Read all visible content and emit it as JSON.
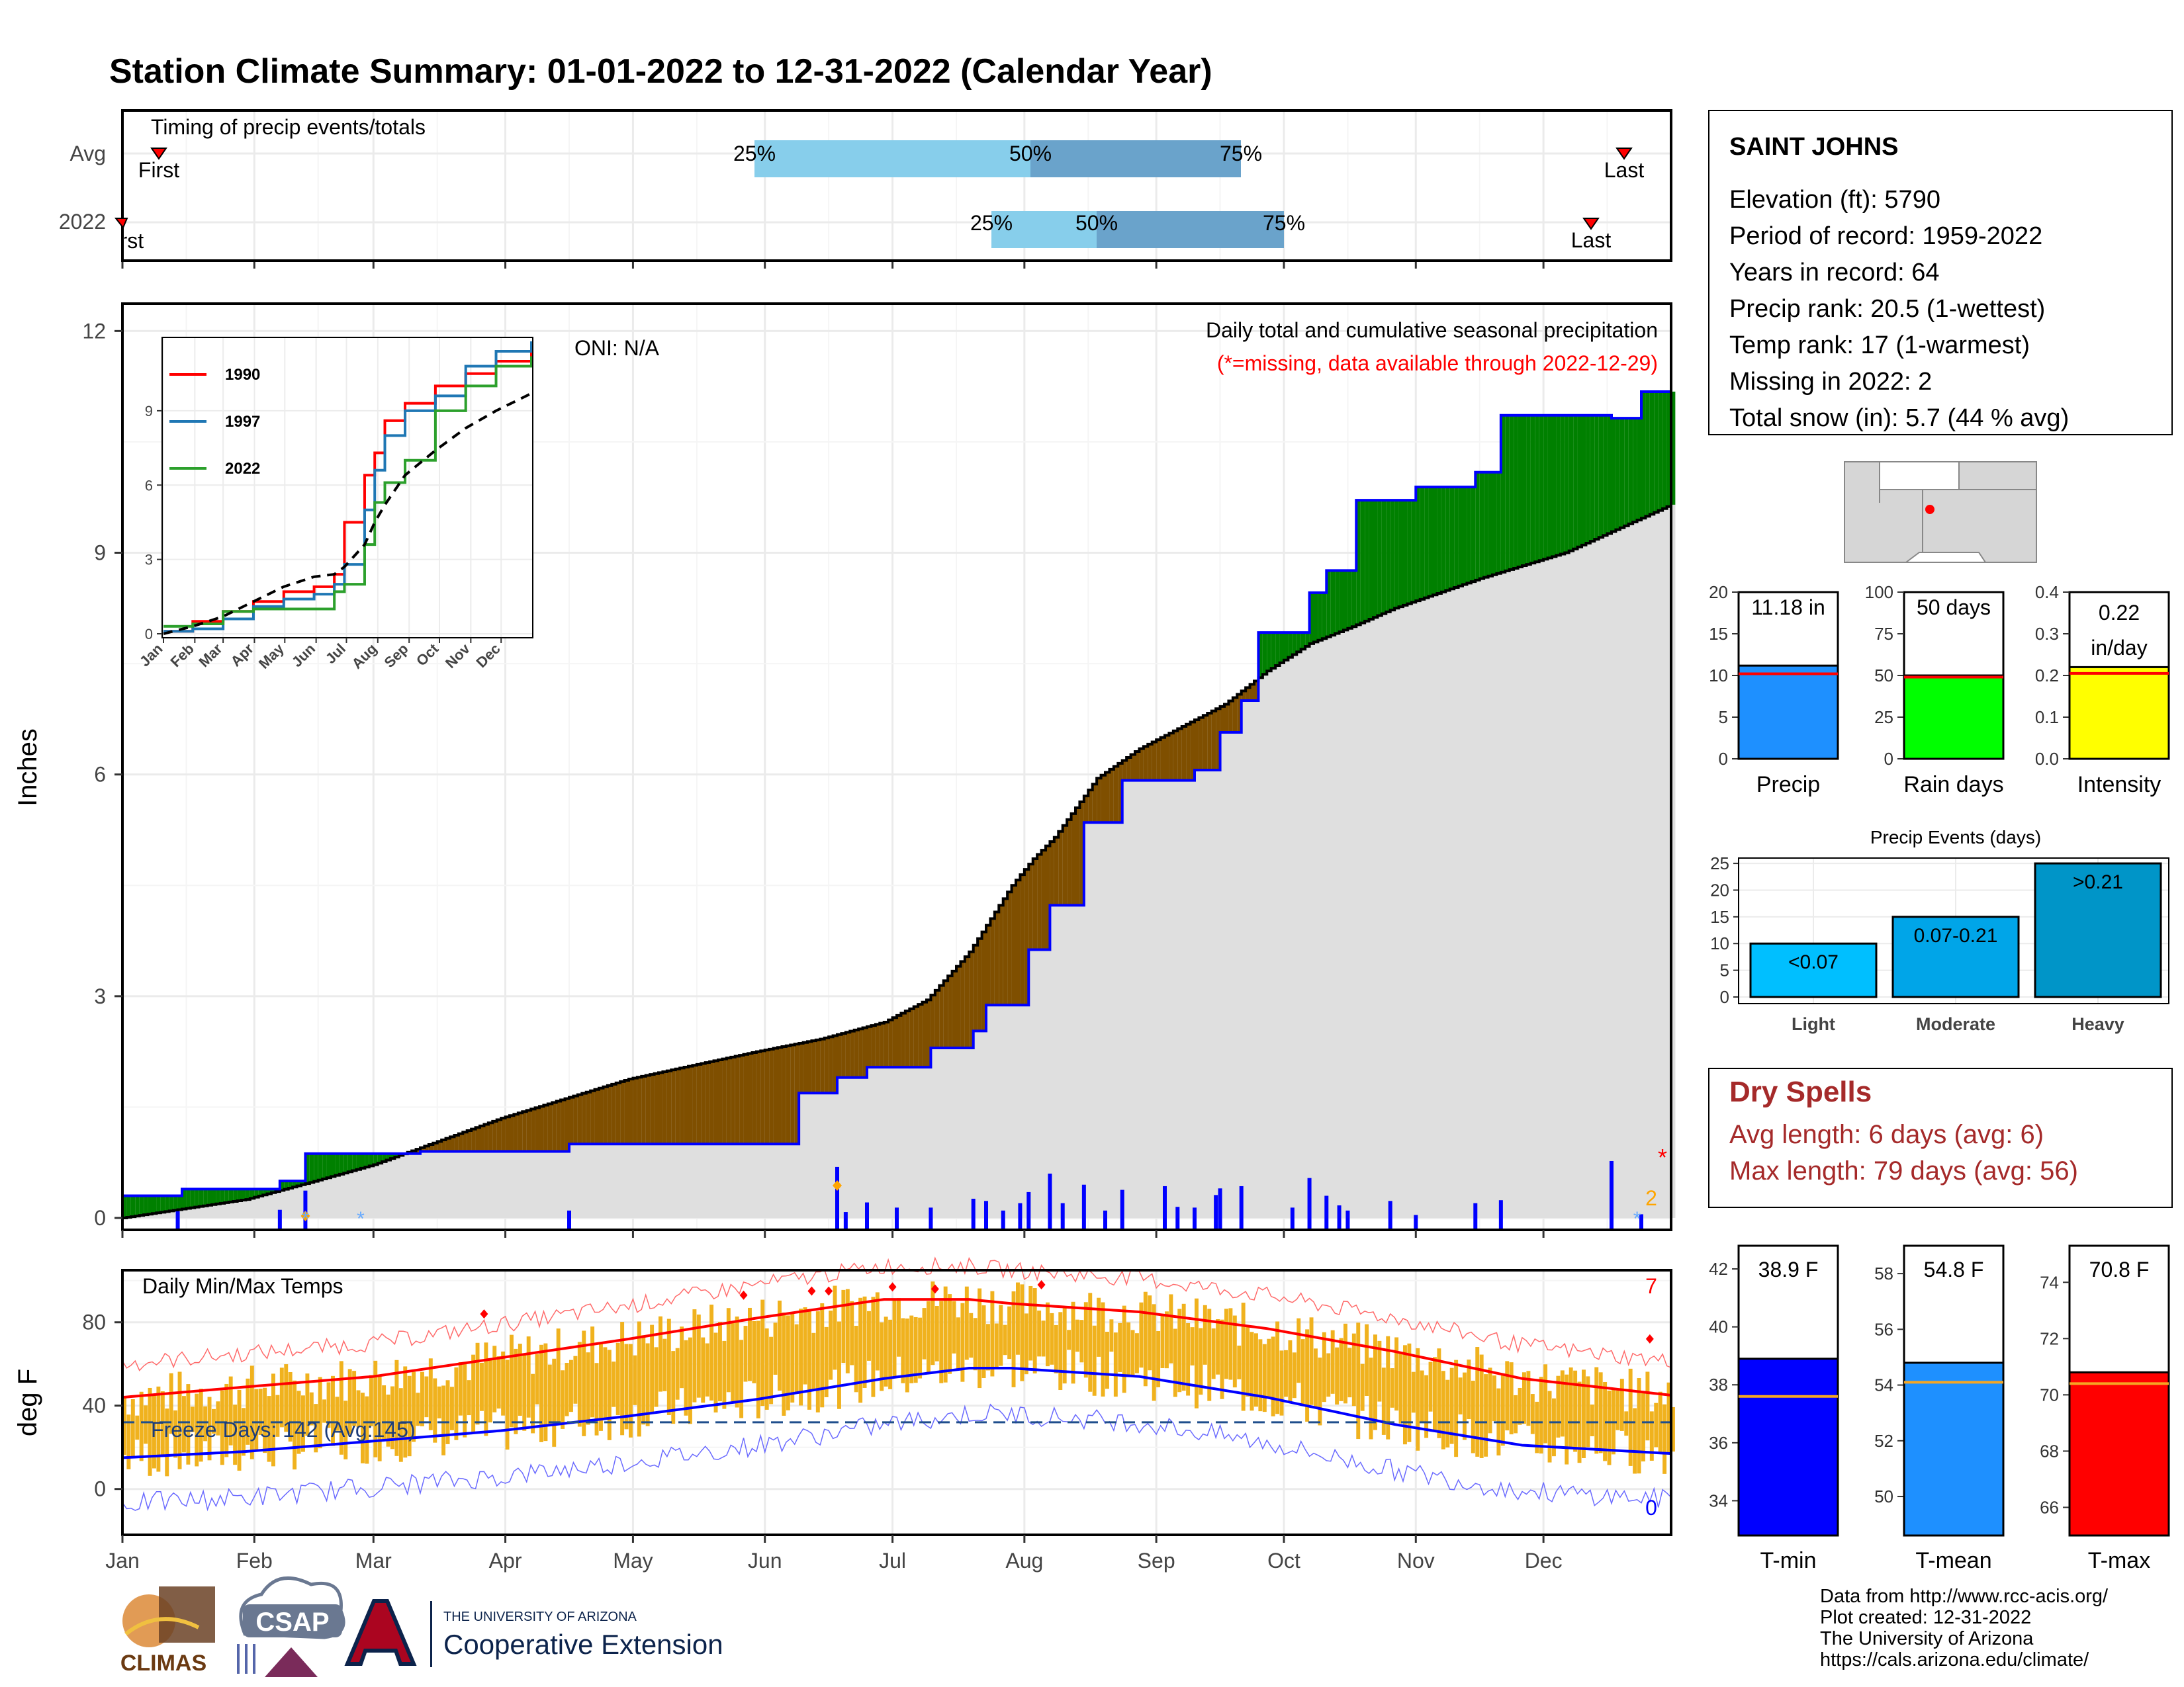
{
  "title": "Station Climate Summary: 01-01-2022 to 12-31-2022 (Calendar Year)",
  "colors": {
    "title": "#1a1a8c",
    "precip_cum": "#0000ff",
    "above_fill": "#008000",
    "below_fill": "#7f4f00",
    "climo_fill": "#dfdfdf",
    "tmax_line": "#ff0000",
    "tmin_line": "#0000ff",
    "temp_bars": "#f0b21e",
    "dry_spells": "#a52a2a",
    "quartile_light": "#87ceeb",
    "quartile_dark": "#6aa3cb"
  },
  "timing": {
    "title": "Timing of precip events/totals",
    "rows": [
      {
        "label": "Avg",
        "first_label": "First",
        "last_label": "Last",
        "q25_label": "25%",
        "q50_label": "50%",
        "q75_label": "75%"
      },
      {
        "label": "2022",
        "first_label": "First",
        "last_label": "Last",
        "q25_label": "25%",
        "q50_label": "50%",
        "q75_label": "75%"
      }
    ]
  },
  "main_panel": {
    "ylabel": "Inches",
    "yticks": [
      "0",
      "3",
      "6",
      "9",
      "12"
    ],
    "oni": "ONI: N/A",
    "note_line1": "Daily total and cumulative seasonal precipitation",
    "note_line2": "(*=missing, data available through 2022-12-29)",
    "missing_count": "2",
    "missing_marker": "*"
  },
  "inset": {
    "yticks": [
      "0",
      "3",
      "6",
      "9"
    ],
    "months": [
      "Jan",
      "Feb",
      "Mar",
      "Apr",
      "May",
      "Jun",
      "Jul",
      "Aug",
      "Sep",
      "Oct",
      "Nov",
      "Dec"
    ],
    "legend": [
      {
        "name": "1990",
        "color": "#ff0000"
      },
      {
        "name": "1997",
        "color": "#1f77b4"
      },
      {
        "name": "2022",
        "color": "#2ca02c"
      }
    ]
  },
  "temp_panel": {
    "ylabel": "deg F",
    "title": "Daily Min/Max Temps",
    "yticks": [
      "0",
      "40",
      "80"
    ],
    "freeze_label": "Freeze Days: 142 (Avg:145)",
    "record_high_count": "7",
    "record_low_count": "0"
  },
  "months": [
    "Jan",
    "Feb",
    "Mar",
    "Apr",
    "May",
    "Jun",
    "Jul",
    "Aug",
    "Sep",
    "Oct",
    "Nov",
    "Dec"
  ],
  "station": {
    "name": "SAINT JOHNS",
    "lines": [
      "Elevation (ft): 5790",
      "Period of record: 1959-2022",
      "Years in record: 64",
      "Precip rank: 20.5 (1-wettest)",
      "Temp rank: 17 (1-warmest)",
      "Missing in 2022: 2",
      "Total snow (in): 5.7 (44 % avg)"
    ]
  },
  "mini_bars": [
    {
      "label": "Precip",
      "value_label": "11.18 in",
      "yticks": [
        "0",
        "5",
        "10",
        "15",
        "20"
      ],
      "color": "#1e90ff"
    },
    {
      "label": "Rain days",
      "value_label": "50 days",
      "yticks": [
        "0",
        "25",
        "50",
        "75",
        "100"
      ],
      "color": "#00ff00"
    },
    {
      "label": "Intensity",
      "value_label": "0.22",
      "value_label2": "in/day",
      "yticks": [
        "0.0",
        "0.1",
        "0.2",
        "0.3",
        "0.4"
      ],
      "color": "#ffff00"
    }
  ],
  "events": {
    "title": "Precip Events (days)",
    "yticks": [
      "0",
      "5",
      "10",
      "15",
      "20",
      "25"
    ],
    "bars": [
      {
        "label": "Light",
        "value_label": "<0.07",
        "color": "#00bfff"
      },
      {
        "label": "Moderate",
        "value_label": "0.07-0.21",
        "color": "#00a5e8"
      },
      {
        "label": "Heavy",
        "value_label": ">0.21",
        "color": "#0095c8"
      }
    ]
  },
  "dry_spells": {
    "title": "Dry Spells",
    "line1": "Avg length: 6 days (avg: 6)",
    "line2": "Max length: 79 days (avg: 56)"
  },
  "temp_bars": [
    {
      "label": "T-min",
      "value_label": "38.9 F",
      "yticks": [
        "34",
        "36",
        "38",
        "40",
        "42"
      ],
      "color": "#0000ff"
    },
    {
      "label": "T-mean",
      "value_label": "54.8 F",
      "yticks": [
        "50",
        "52",
        "54",
        "56",
        "58"
      ],
      "color": "#1e90ff"
    },
    {
      "label": "T-max",
      "value_label": "70.8 F",
      "yticks": [
        "66",
        "68",
        "70",
        "72",
        "74"
      ],
      "color": "#ff0000"
    }
  ],
  "footer": {
    "lines": [
      "Data from http://www.rcc-acis.org/",
      "Plot created: 12-31-2022",
      "The University of Arizona",
      "https://cals.arizona.edu/climate/"
    ],
    "climas": "CLIMAS",
    "csap": "CSAP",
    "ua_small": "THE UNIVERSITY OF ARIZONA",
    "ua_big": "Cooperative Extension"
  },
  "chart_data": [
    {
      "type": "area",
      "title": "Daily total and cumulative seasonal precipitation",
      "ylabel": "Inches",
      "ylim": [
        0,
        12.2
      ],
      "x_unit": "day of year",
      "series": [
        {
          "name": "2022 cumulative",
          "x": [
            1,
            14,
            15,
            37,
            38,
            43,
            44,
            70,
            71,
            105,
            106,
            159,
            160,
            168,
            169,
            175,
            176,
            190,
            191,
            200,
            201,
            203,
            204,
            213,
            214,
            218,
            219,
            226,
            227,
            235,
            236,
            252,
            253,
            258,
            259,
            263,
            264,
            267,
            268,
            279,
            280,
            283,
            284,
            290,
            291,
            304,
            305,
            318,
            319,
            324,
            325,
            350,
            351,
            357,
            358,
            365
          ],
          "values": [
            0.3,
            0.3,
            0.39,
            0.39,
            0.5,
            0.5,
            0.87,
            0.87,
            0.9,
            0.9,
            1.0,
            1.0,
            1.69,
            1.69,
            1.9,
            1.9,
            2.04,
            2.04,
            2.3,
            2.3,
            2.53,
            2.53,
            2.88,
            2.88,
            3.63,
            3.63,
            4.23,
            4.23,
            5.35,
            5.35,
            5.92,
            5.92,
            6.06,
            6.06,
            6.57,
            6.57,
            7.0,
            7.0,
            7.92,
            7.92,
            8.46,
            8.46,
            8.76,
            8.76,
            9.71,
            9.71,
            9.89,
            9.89,
            10.09,
            10.09,
            10.86,
            10.86,
            10.82,
            10.82,
            11.18,
            11.18
          ]
        },
        {
          "name": "Average cumulative",
          "x": [
            1,
            30,
            45,
            60,
            90,
            120,
            150,
            165,
            180,
            190,
            200,
            210,
            215,
            220,
            230,
            240,
            250,
            260,
            270,
            280,
            290,
            300,
            320,
            340,
            365
          ],
          "values": [
            0,
            0.25,
            0.48,
            0.72,
            1.35,
            1.88,
            2.25,
            2.42,
            2.65,
            2.95,
            3.6,
            4.5,
            4.86,
            5.15,
            5.95,
            6.35,
            6.65,
            6.95,
            7.4,
            7.77,
            8.0,
            8.25,
            8.65,
            9.0,
            9.65
          ]
        }
      ],
      "daily_bars_inches": [
        {
          "day": 14,
          "value": 0.09
        },
        {
          "day": 38,
          "value": 0.11
        },
        {
          "day": 44,
          "value": 0.37
        },
        {
          "day": 106,
          "value": 0.1
        },
        {
          "day": 169,
          "value": 0.69
        },
        {
          "day": 171,
          "value": 0.08
        },
        {
          "day": 176,
          "value": 0.21
        },
        {
          "day": 183,
          "value": 0.14
        },
        {
          "day": 191,
          "value": 0.14
        },
        {
          "day": 201,
          "value": 0.26
        },
        {
          "day": 204,
          "value": 0.23
        },
        {
          "day": 208,
          "value": 0.1
        },
        {
          "day": 212,
          "value": 0.2
        },
        {
          "day": 214,
          "value": 0.35
        },
        {
          "day": 219,
          "value": 0.6
        },
        {
          "day": 222,
          "value": 0.2
        },
        {
          "day": 227,
          "value": 0.45
        },
        {
          "day": 232,
          "value": 0.1
        },
        {
          "day": 236,
          "value": 0.38
        },
        {
          "day": 246,
          "value": 0.43
        },
        {
          "day": 249,
          "value": 0.15
        },
        {
          "day": 253,
          "value": 0.14
        },
        {
          "day": 258,
          "value": 0.31
        },
        {
          "day": 259,
          "value": 0.4
        },
        {
          "day": 264,
          "value": 0.43
        },
        {
          "day": 276,
          "value": 0.14
        },
        {
          "day": 280,
          "value": 0.54
        },
        {
          "day": 284,
          "value": 0.3
        },
        {
          "day": 287,
          "value": 0.17
        },
        {
          "day": 289,
          "value": 0.1
        },
        {
          "day": 299,
          "value": 0.23
        },
        {
          "day": 305,
          "value": 0.04
        },
        {
          "day": 319,
          "value": 0.2
        },
        {
          "day": 325,
          "value": 0.24
        },
        {
          "day": 351,
          "value": 0.77
        },
        {
          "day": 358,
          "value": 0.05
        }
      ]
    },
    {
      "type": "line",
      "title": "Daily Min/Max Temps",
      "ylabel": "deg F",
      "ylim": [
        -22,
        105
      ],
      "x_unit": "day of year",
      "series": [
        {
          "name": "Normal max",
          "x": [
            1,
            30,
            60,
            90,
            120,
            150,
            180,
            200,
            210,
            240,
            270,
            300,
            330,
            365
          ],
          "values": [
            44,
            49,
            54,
            63,
            72,
            82,
            91,
            91,
            89,
            85,
            77,
            66,
            53,
            45
          ]
        },
        {
          "name": "Normal min",
          "x": [
            1,
            30,
            60,
            90,
            120,
            150,
            180,
            200,
            210,
            240,
            270,
            300,
            330,
            365
          ],
          "values": [
            15,
            18,
            23,
            28,
            35,
            43,
            53,
            58,
            58,
            54,
            44,
            31,
            21,
            17
          ]
        },
        {
          "name": "Freeze line",
          "x": [
            1,
            365
          ],
          "values": [
            32,
            32
          ]
        }
      ]
    },
    {
      "type": "bar",
      "title": "Precip",
      "categories": [
        "Precip"
      ],
      "values": [
        11.18
      ],
      "average": 10.2,
      "ylim": [
        0,
        20
      ]
    },
    {
      "type": "bar",
      "title": "Rain days",
      "categories": [
        "Rain days"
      ],
      "values": [
        50
      ],
      "average": 49,
      "ylim": [
        0,
        100
      ]
    },
    {
      "type": "bar",
      "title": "Intensity",
      "categories": [
        "Intensity"
      ],
      "values": [
        0.22
      ],
      "average": 0.205,
      "ylim": [
        0,
        0.4
      ]
    },
    {
      "type": "bar",
      "title": "Precip Events (days)",
      "categories": [
        "Light",
        "Moderate",
        "Heavy"
      ],
      "values": [
        10,
        15,
        25
      ],
      "ylim": [
        0,
        26
      ]
    },
    {
      "type": "bar",
      "title": "T-min",
      "categories": [
        "T-min"
      ],
      "values": [
        38.9
      ],
      "average": 37.6,
      "ylim": [
        32.8,
        42.8
      ]
    },
    {
      "type": "bar",
      "title": "T-mean",
      "categories": [
        "T-mean"
      ],
      "values": [
        54.8
      ],
      "average": 54.1,
      "ylim": [
        48.6,
        59.0
      ]
    },
    {
      "type": "bar",
      "title": "T-max",
      "categories": [
        "T-max"
      ],
      "values": [
        70.8
      ],
      "average": 70.4,
      "ylim": [
        65.0,
        75.3
      ]
    },
    {
      "type": "line",
      "title": "Inset cumulative precip",
      "ylim": [
        0,
        11.8
      ],
      "series": [
        {
          "name": "1990",
          "x": [
            1,
            30,
            60,
            90,
            120,
            150,
            170,
            180,
            200,
            210,
            220,
            240,
            270,
            300,
            330,
            365
          ],
          "values": [
            0.1,
            0.5,
            0.9,
            1.3,
            1.7,
            1.9,
            2.4,
            4.5,
            6.4,
            7.3,
            8.6,
            9.3,
            10.0,
            10.5,
            11.0,
            11.6
          ]
        },
        {
          "name": "1997",
          "x": [
            1,
            30,
            60,
            90,
            120,
            150,
            170,
            180,
            200,
            210,
            220,
            240,
            270,
            300,
            330,
            365
          ],
          "values": [
            0.1,
            0.2,
            0.6,
            1.1,
            1.4,
            1.6,
            2.0,
            2.8,
            5.0,
            6.6,
            8.0,
            9.0,
            9.6,
            10.8,
            11.4,
            11.8
          ]
        },
        {
          "name": "2022",
          "x": [
            1,
            30,
            60,
            90,
            120,
            150,
            170,
            180,
            200,
            210,
            220,
            240,
            270,
            300,
            330,
            365
          ],
          "values": [
            0.3,
            0.4,
            0.9,
            1.0,
            1.0,
            1.0,
            1.7,
            2.0,
            3.6,
            5.3,
            6.1,
            7.0,
            9.0,
            10.0,
            10.8,
            11.2
          ]
        },
        {
          "name": "Average",
          "x": [
            1,
            30,
            60,
            90,
            120,
            150,
            170,
            180,
            200,
            210,
            220,
            240,
            270,
            300,
            330,
            365
          ],
          "values": [
            0,
            0.3,
            0.7,
            1.3,
            1.9,
            2.3,
            2.4,
            2.7,
            3.6,
            4.5,
            5.2,
            6.4,
            7.4,
            8.3,
            9.0,
            9.7
          ]
        }
      ]
    }
  ]
}
